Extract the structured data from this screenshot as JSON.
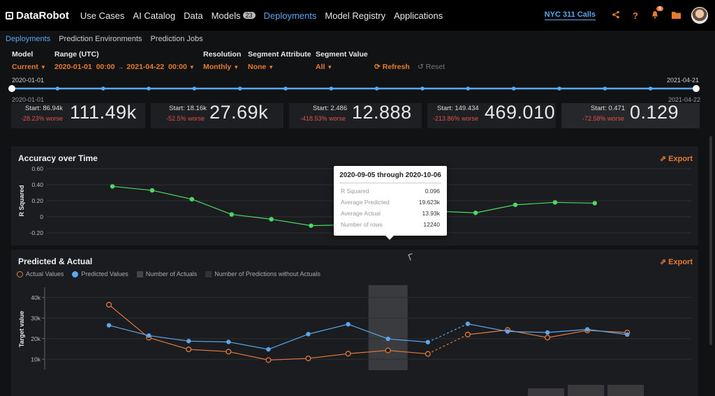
{
  "nav": {
    "logo": "DataRobot",
    "links": [
      {
        "label": "Use Cases"
      },
      {
        "label": "AI Catalog"
      },
      {
        "label": "Data"
      },
      {
        "label": "Models",
        "badge": "23"
      },
      {
        "label": "Deployments",
        "active": true
      },
      {
        "label": "Model Registry"
      },
      {
        "label": "Applications"
      }
    ],
    "project": "NYC 311 Calls",
    "notifications": "5"
  },
  "subnav": [
    "Deployments",
    "Prediction Environments",
    "Prediction Jobs"
  ],
  "filters": {
    "model": {
      "label": "Model",
      "value": "Current"
    },
    "range": {
      "label": "Range (UTC)",
      "start_date": "2020-01-01",
      "start_time": "00:00",
      "end_date": "2021-04-22",
      "end_time": "00:00"
    },
    "resolution": {
      "label": "Resolution",
      "value": "Monthly"
    },
    "segment_attribute": {
      "label": "Segment Attribute",
      "value": "None"
    },
    "segment_value": {
      "label": "Segment Value",
      "value": "All"
    },
    "refresh": "Refresh",
    "reset": "Reset"
  },
  "slider": {
    "left_top": "2020-01-01",
    "left_bottom": "2020-01-01",
    "right_top": "2021-04-21",
    "right_bottom": "2021-04-22"
  },
  "metrics": [
    {
      "start": "Start: 86.94k",
      "change": "-28.23% worse",
      "value": "111.49k"
    },
    {
      "start": "Start: 18.16k",
      "change": "-52.5% worse",
      "value": "27.69k"
    },
    {
      "start": "Start: 2.486",
      "change": "-418.53% worse",
      "value": "12.888"
    },
    {
      "start": "Start: 149.434",
      "change": "-213.86% worse",
      "value": "469.010"
    },
    {
      "start": "Start: 0.471",
      "change": "-72.58% worse",
      "value": "0.129"
    }
  ],
  "accuracy": {
    "title": "Accuracy over Time",
    "export": "Export"
  },
  "tooltip": {
    "title": "2020-09-05 through 2020-10-06",
    "rows": [
      {
        "k": "R Squared",
        "v": "0.096"
      },
      {
        "k": "Average Predicted",
        "v": "19.623k"
      },
      {
        "k": "Average Actual",
        "v": "13.93k"
      },
      {
        "k": "Number of rows",
        "v": "12240"
      }
    ]
  },
  "predicted": {
    "title": "Predicted & Actual",
    "export": "Export",
    "legend": [
      "Actual Values",
      "Predicted Values",
      "Number of Actuals",
      "Number of Predictions without Actuals"
    ]
  },
  "chart_data": [
    {
      "type": "line",
      "title": "Accuracy over Time",
      "ylabel": "R Squared",
      "xlabel": "",
      "ylim": [
        -0.2,
        0.6
      ],
      "yticks": [
        "0.60",
        "0.40",
        "0.20",
        "0",
        "-0.20"
      ],
      "grid": true,
      "series": [
        {
          "values": [
            0.38,
            0.33,
            0.22,
            0.03,
            -0.03,
            -0.11,
            -0.1,
            0.02,
            0.07,
            0.05,
            0.15,
            0.18,
            0.17
          ],
          "color": "#4cd964"
        }
      ],
      "dashed_segment": [
        6,
        8
      ]
    },
    {
      "type": "line",
      "title": "Predicted & Actual",
      "ylabel": "Target value",
      "xlabel": "",
      "ylim": [
        5000,
        45000
      ],
      "yticks": [
        "40k",
        "30k",
        "20k",
        "10k"
      ],
      "grid": true,
      "series": [
        {
          "name": "Actual Values",
          "values": [
            36500,
            20500,
            14800,
            13700,
            9600,
            10400,
            12700,
            14300,
            12600,
            22000,
            24200,
            20500,
            24000,
            23000
          ],
          "color": "#e07a3c"
        },
        {
          "name": "Predicted Values",
          "values": [
            26500,
            21500,
            18800,
            18400,
            14800,
            22200,
            27000,
            19900,
            18300,
            27200,
            23500,
            23000,
            24500,
            22000
          ],
          "color": "#5aa7ee"
        }
      ],
      "dashed_segment": [
        8,
        9
      ],
      "highlight_index": 7
    }
  ]
}
